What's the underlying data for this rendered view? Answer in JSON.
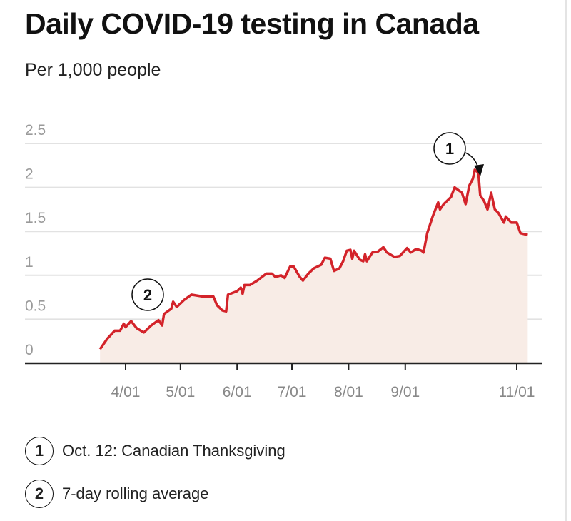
{
  "chart_data": {
    "type": "area",
    "title": "Daily COVID-19 testing in Canada",
    "subtitle": "Per 1,000 people",
    "xlabel": "",
    "ylabel": "",
    "ylim": [
      0,
      2.5
    ],
    "yticks": [
      "0",
      "0.5",
      "1",
      "1.5",
      "2",
      "2.5"
    ],
    "ytick_values": [
      0,
      0.5,
      1,
      1.5,
      2,
      2.5
    ],
    "xticks": [
      "4/01",
      "5/01",
      "6/01",
      "7/01",
      "8/01",
      "9/01",
      "11/01"
    ],
    "grid": true,
    "colors": {
      "line": "#d3232a",
      "fill": "#f8ece6",
      "grid": "#e2e2e2",
      "axis": "#222222",
      "tick_label": "#9a9a9a"
    },
    "x": [
      "3/18",
      "3/22",
      "3/26",
      "3/29",
      "3/31",
      "4/01",
      "4/04",
      "4/07",
      "4/11",
      "4/15",
      "4/19",
      "4/21",
      "4/22",
      "4/26",
      "4/27",
      "4/29",
      "5/03",
      "5/07",
      "5/13",
      "5/19",
      "5/21",
      "5/24",
      "5/26",
      "5/27",
      "6/01",
      "6/03",
      "6/04",
      "6/05",
      "6/08",
      "6/12",
      "6/17",
      "6/20",
      "6/22",
      "6/25",
      "6/27",
      "6/30",
      "7/02",
      "7/05",
      "7/07",
      "7/10",
      "7/13",
      "7/17",
      "7/19",
      "7/22",
      "7/24",
      "7/27",
      "7/29",
      "7/31",
      "8/02",
      "8/03",
      "8/04",
      "8/07",
      "8/09",
      "8/10",
      "8/11",
      "8/14",
      "8/17",
      "8/20",
      "8/22",
      "8/26",
      "8/29",
      "9/02",
      "9/04",
      "9/07",
      "9/10",
      "9/11",
      "9/13",
      "9/16",
      "9/19",
      "9/20",
      "9/22",
      "9/26",
      "9/28",
      "10/02",
      "10/04",
      "10/06",
      "10/08",
      "10/09",
      "10/11",
      "10/12",
      "10/14",
      "10/16",
      "10/18",
      "10/20",
      "10/22",
      "10/25",
      "10/26",
      "10/29",
      "11/01",
      "11/03",
      "11/05",
      "11/07"
    ],
    "values": [
      0.16,
      0.28,
      0.37,
      0.37,
      0.45,
      0.41,
      0.48,
      0.4,
      0.35,
      0.43,
      0.49,
      0.43,
      0.56,
      0.62,
      0.7,
      0.64,
      0.72,
      0.78,
      0.76,
      0.76,
      0.66,
      0.6,
      0.59,
      0.78,
      0.82,
      0.86,
      0.79,
      0.89,
      0.89,
      0.94,
      1.02,
      1.02,
      0.98,
      1.0,
      0.97,
      1.1,
      1.1,
      0.99,
      0.94,
      1.02,
      1.08,
      1.12,
      1.2,
      1.19,
      1.05,
      1.08,
      1.16,
      1.28,
      1.29,
      1.19,
      1.28,
      1.18,
      1.16,
      1.24,
      1.16,
      1.26,
      1.27,
      1.32,
      1.26,
      1.21,
      1.22,
      1.31,
      1.26,
      1.3,
      1.28,
      1.26,
      1.48,
      1.67,
      1.83,
      1.75,
      1.81,
      1.89,
      2.0,
      1.94,
      1.81,
      2.02,
      2.1,
      2.2,
      2.17,
      1.91,
      1.85,
      1.75,
      1.94,
      1.75,
      1.71,
      1.6,
      1.67,
      1.6,
      1.6,
      1.48,
      1.47,
      1.46
    ],
    "annotations": [
      {
        "marker": "1",
        "text": "Oct. 12: Canadian Thanksgiving",
        "date": "10/11"
      },
      {
        "marker": "2",
        "text": "7-day rolling average"
      }
    ]
  }
}
